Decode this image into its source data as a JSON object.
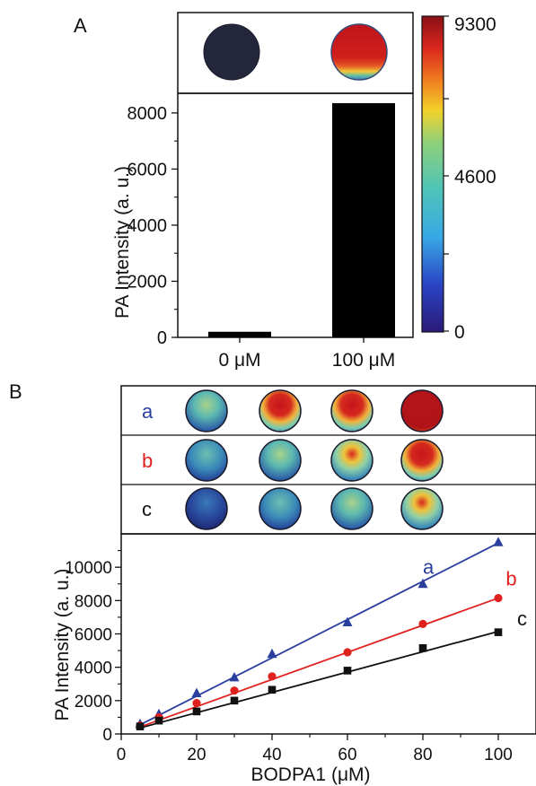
{
  "panelA": {
    "label": "A",
    "images": [
      {
        "id": "0uM",
        "kind": "dark"
      },
      {
        "id": "100uM",
        "kind": "full"
      }
    ],
    "colorbar": {
      "ticks": [
        "9300",
        "4600",
        "0"
      ],
      "min": 0,
      "max": 9300
    }
  },
  "panelB": {
    "label": "B",
    "rows": [
      {
        "name": "a",
        "color": "#2a3f9d",
        "levels": [
          0.35,
          0.8,
          0.85,
          1.0
        ]
      },
      {
        "name": "b",
        "color": "#e0221f",
        "levels": [
          0.2,
          0.4,
          0.7,
          0.85
        ]
      },
      {
        "name": "c",
        "color": "#111111",
        "levels": [
          0.1,
          0.2,
          0.4,
          0.7
        ]
      }
    ]
  },
  "chart_data": [
    {
      "type": "bar",
      "categories": [
        "0 μM",
        "100 μM"
      ],
      "values": [
        200,
        8350
      ],
      "ylabel": "PA Intensity (a. u.)",
      "ylim": [
        0,
        8700
      ],
      "yticks": [
        0,
        2000,
        4000,
        6000,
        8000
      ],
      "color": "#000000",
      "grid": false
    },
    {
      "type": "scatter",
      "xlabel": "BODPA1 (μM)",
      "ylabel": "PA Intensity (a. u.)",
      "xlim": [
        0,
        110
      ],
      "ylim": [
        0,
        12000
      ],
      "xticks": [
        0,
        20,
        40,
        60,
        80,
        100
      ],
      "yticks": [
        0,
        2000,
        4000,
        6000,
        8000,
        10000
      ],
      "x": [
        5,
        10,
        20,
        30,
        40,
        60,
        80,
        100
      ],
      "series": [
        {
          "name": "a",
          "color": "#2a3f9d",
          "marker": "triangle",
          "values": [
            600,
            1200,
            2450,
            3400,
            4800,
            6700,
            9000,
            11500
          ]
        },
        {
          "name": "b",
          "color": "#e0221f",
          "marker": "circle",
          "values": [
            500,
            1000,
            1850,
            2600,
            3450,
            4900,
            6600,
            8150
          ]
        },
        {
          "name": "c",
          "color": "#111111",
          "marker": "square",
          "values": [
            450,
            800,
            1350,
            2000,
            2650,
            3800,
            5150,
            6100
          ]
        }
      ],
      "fits": [
        {
          "series": "a",
          "x": [
            5,
            100
          ],
          "y": [
            550,
            11450
          ]
        },
        {
          "series": "b",
          "x": [
            5,
            100
          ],
          "y": [
            420,
            8150
          ]
        },
        {
          "series": "c",
          "x": [
            5,
            100
          ],
          "y": [
            360,
            6150
          ]
        }
      ],
      "grid": false
    }
  ]
}
